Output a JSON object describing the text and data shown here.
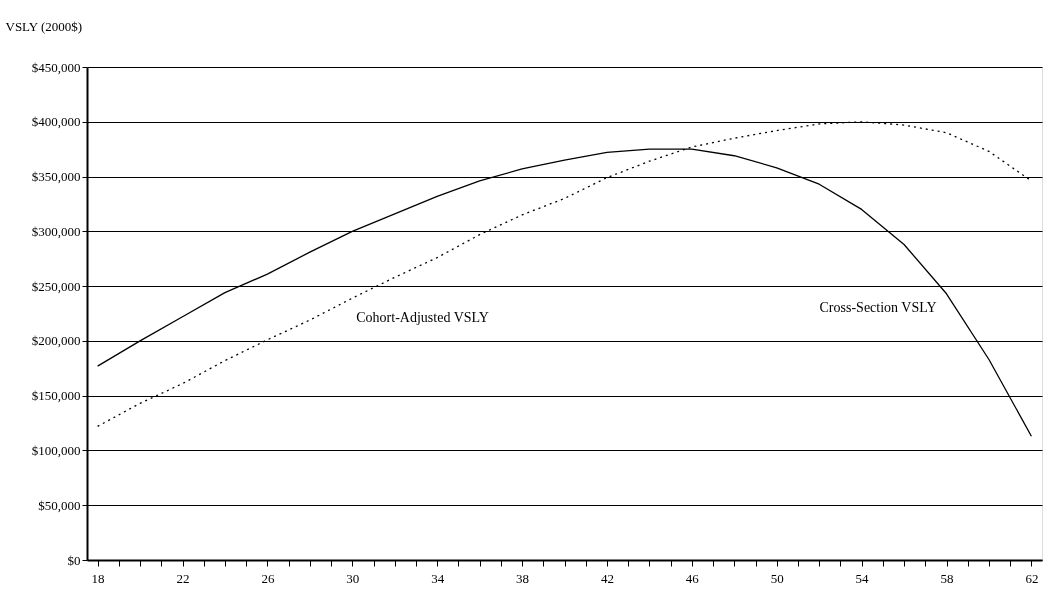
{
  "chart_data": {
    "type": "line",
    "ylabel": "VSLY (2000$)",
    "x": [
      18,
      20,
      22,
      24,
      26,
      28,
      30,
      32,
      34,
      36,
      38,
      40,
      42,
      44,
      46,
      48,
      50,
      52,
      54,
      56,
      58,
      60,
      62
    ],
    "series": [
      {
        "name": "Cross-Section VSLY",
        "color": "#000000",
        "line_style": "solid",
        "values": [
          177000,
          200000,
          222000,
          244000,
          261000,
          281000,
          300000,
          316000,
          332000,
          346000,
          357000,
          365000,
          372000,
          375000,
          375000,
          369000,
          358000,
          343000,
          320000,
          288000,
          243000,
          183000,
          113000
        ]
      },
      {
        "name": "Cohort-Adjusted VSLY",
        "color": "#000000",
        "line_style": "dotted",
        "values": [
          122000,
          143000,
          161000,
          182000,
          201000,
          219000,
          239000,
          258000,
          276000,
          297000,
          315000,
          330000,
          349000,
          364000,
          377000,
          385000,
          392000,
          398000,
          400000,
          397000,
          390000,
          373000,
          346000
        ]
      }
    ],
    "xlim": [
      17.5,
      62.5
    ],
    "xticks": [
      18,
      {
        "value": 19,
        "label": null
      },
      {
        "value": 20,
        "label": null
      },
      {
        "value": 21,
        "label": null
      },
      22,
      {
        "value": 23,
        "label": null
      },
      {
        "value": 24,
        "label": null
      },
      {
        "value": 25,
        "label": null
      },
      26,
      {
        "value": 27,
        "label": null
      },
      {
        "value": 28,
        "label": null
      },
      {
        "value": 29,
        "label": null
      },
      30,
      {
        "value": 31,
        "label": null
      },
      {
        "value": 32,
        "label": null
      },
      {
        "value": 33,
        "label": null
      },
      34,
      {
        "value": 35,
        "label": null
      },
      {
        "value": 36,
        "label": null
      },
      {
        "value": 37,
        "label": null
      },
      38,
      {
        "value": 39,
        "label": null
      },
      {
        "value": 40,
        "label": null
      },
      {
        "value": 41,
        "label": null
      },
      42,
      {
        "value": 43,
        "label": null
      },
      {
        "value": 44,
        "label": null
      },
      {
        "value": 45,
        "label": null
      },
      46,
      {
        "value": 47,
        "label": null
      },
      {
        "value": 48,
        "label": null
      },
      {
        "value": 49,
        "label": null
      },
      50,
      {
        "value": 51,
        "label": null
      },
      {
        "value": 52,
        "label": null
      },
      {
        "value": 53,
        "label": null
      },
      54,
      {
        "value": 55,
        "label": null
      },
      {
        "value": 56,
        "label": null
      },
      {
        "value": 57,
        "label": null
      },
      58,
      {
        "value": 59,
        "label": null
      },
      {
        "value": 60,
        "label": null
      },
      {
        "value": 61,
        "label": null
      },
      62
    ],
    "ylim": [
      0,
      450000
    ],
    "yticks": [
      {
        "value": 0,
        "label": "$0"
      },
      {
        "value": 50000,
        "label": "$50,000"
      },
      {
        "value": 100000,
        "label": "$100,000"
      },
      {
        "value": 150000,
        "label": "$150,000"
      },
      {
        "value": 200000,
        "label": "$200,000"
      },
      {
        "value": 250000,
        "label": "$250,000"
      },
      {
        "value": 300000,
        "label": "$300,000"
      },
      {
        "value": 350000,
        "label": "$350,000"
      },
      {
        "value": 400000,
        "label": "$400,000"
      },
      {
        "value": 450000,
        "label": "$450,000"
      }
    ],
    "grid": "y",
    "marker": "none"
  }
}
